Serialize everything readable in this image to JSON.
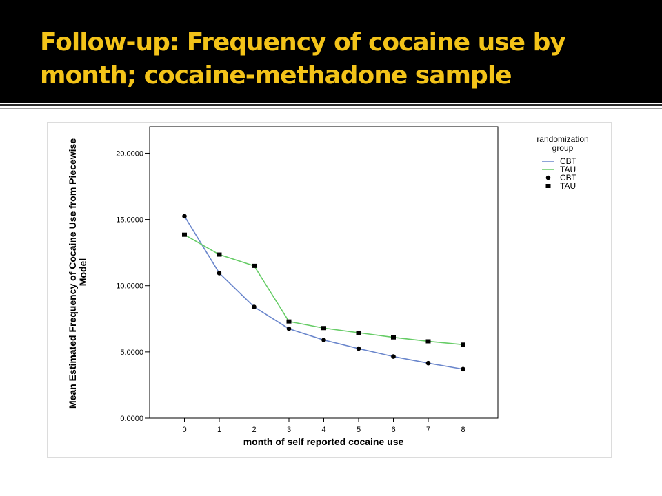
{
  "slide": {
    "title_line1": "Follow-up:  Frequency of cocaine use by",
    "title_line2": "month; cocaine-methadone sample"
  },
  "colors": {
    "title_text": "#f3c319",
    "title_bar": "#000000",
    "cbt_line": "#6a86cc",
    "tau_line": "#66cc66",
    "marker": "#000000"
  },
  "chart_data": {
    "type": "line",
    "xlabel": "month of self reported cocaine use",
    "ylabel": "Mean Estimated Frequency of Cocaine Use from Piecewise Model",
    "ylabel_lines": [
      "Mean Estimated Frequency of Cocaine Use from Piecewise",
      "Model"
    ],
    "x": [
      0,
      1,
      2,
      3,
      4,
      5,
      6,
      7,
      8
    ],
    "x_tick_labels": [
      "0",
      "1",
      "2",
      "3",
      "4",
      "5",
      "6",
      "7",
      "8"
    ],
    "xlim": [
      -1,
      9
    ],
    "ylim": [
      0,
      22
    ],
    "y_ticks": [
      0,
      5,
      10,
      15,
      20
    ],
    "y_tick_labels": [
      "0.0000",
      "5.0000",
      "10.0000",
      "15.0000",
      "20.0000"
    ],
    "grid": false,
    "legend_position": "top-right",
    "legend_title_lines": [
      "randomization",
      "group"
    ],
    "series": [
      {
        "name": "CBT",
        "marker": "circle",
        "values": [
          15.25,
          10.95,
          8.4,
          6.75,
          5.9,
          5.25,
          4.65,
          4.15,
          3.7
        ]
      },
      {
        "name": "TAU",
        "marker": "square",
        "values": [
          13.85,
          12.35,
          11.5,
          7.3,
          6.8,
          6.45,
          6.1,
          5.8,
          5.55
        ]
      }
    ],
    "legend_entries": [
      {
        "label": "CBT",
        "kind": "line",
        "series": 0
      },
      {
        "label": "TAU",
        "kind": "line",
        "series": 1
      },
      {
        "label": "CBT",
        "kind": "marker",
        "series": 0
      },
      {
        "label": "TAU",
        "kind": "marker",
        "series": 1
      }
    ]
  }
}
